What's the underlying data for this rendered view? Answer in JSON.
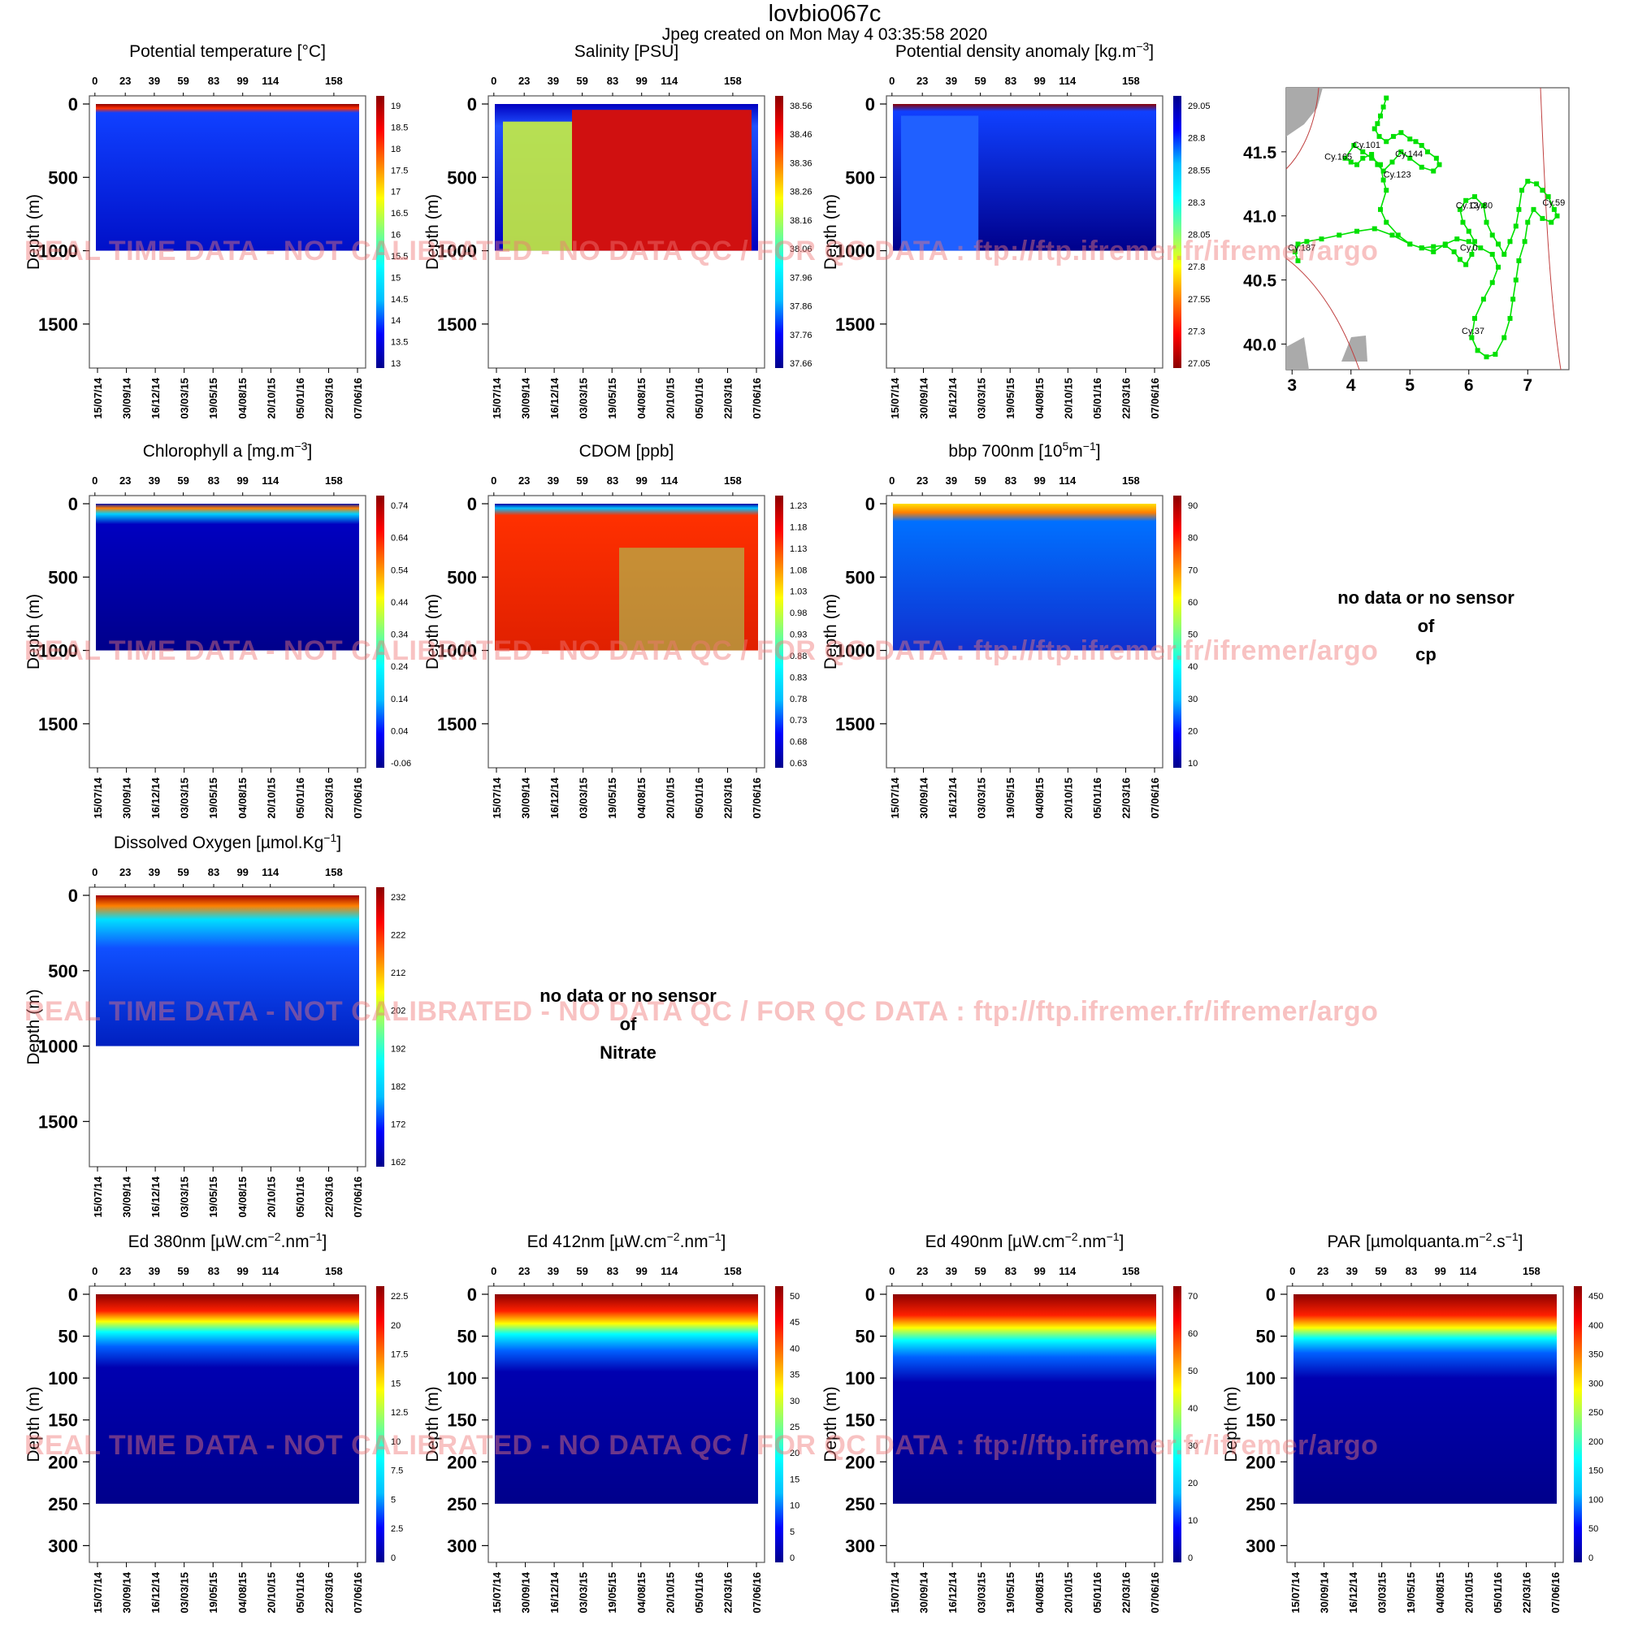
{
  "header": {
    "title": "lovbio067c",
    "subtitle": "Jpeg created on  Mon May  4 03:35:58 2020"
  },
  "watermark": "REAL TIME DATA - NOT CALIBRATED - NO DATA QC  /  FOR QC DATA : ftp://ftp.ifremer.fr/ifremer/argo",
  "nodata": {
    "cp": [
      "no data or no sensor",
      "of",
      "cp"
    ],
    "nitrate": [
      "no data or no sensor",
      "of",
      "Nitrate"
    ]
  },
  "chart_data": [
    {
      "type": "heatmap",
      "id": "temp",
      "title_parts": [
        "Potential temperature [°C]"
      ],
      "ylabel": "Depth (m)",
      "ylim": [
        1800,
        0
      ],
      "yticks": [
        0,
        500,
        1000,
        1500
      ],
      "cycle_ticks": [
        "0",
        "23",
        "39",
        "59",
        "83",
        "99",
        "114",
        "158"
      ],
      "date_ticks": [
        "15/07/14",
        "30/09/14",
        "16/12/14",
        "03/03/15",
        "19/05/15",
        "04/08/15",
        "20/10/15",
        "05/01/16",
        "22/03/16",
        "07/06/16"
      ],
      "colorbar": [
        "19",
        "18.5",
        "18",
        "17.5",
        "17",
        "16.5",
        "16",
        "15.5",
        "15",
        "14.5",
        "14",
        "13.5",
        "13"
      ],
      "palette": [
        "#00008b",
        "#0000ff",
        "#00bfff",
        "#00ffff",
        "#7fff7f",
        "#ffff00",
        "#ff7f00",
        "#ff0000",
        "#8b0000"
      ]
    },
    {
      "type": "heatmap",
      "id": "sal",
      "title_parts": [
        "Salinity [PSU]"
      ],
      "ylabel": "Depth (m)",
      "ylim": [
        1800,
        0
      ],
      "yticks": [
        0,
        500,
        1000,
        1500
      ],
      "cycle_ticks": [
        "0",
        "23",
        "39",
        "59",
        "83",
        "99",
        "114",
        "158"
      ],
      "date_ticks": [
        "15/07/14",
        "30/09/14",
        "16/12/14",
        "03/03/15",
        "19/05/15",
        "04/08/15",
        "20/10/15",
        "05/01/16",
        "22/03/16",
        "07/06/16"
      ],
      "colorbar": [
        "38.56",
        "38.46",
        "38.36",
        "38.26",
        "38.16",
        "38.06",
        "37.96",
        "37.86",
        "37.76",
        "37.66"
      ],
      "palette": [
        "#00008b",
        "#0000ff",
        "#00bfff",
        "#00ffff",
        "#7fff7f",
        "#ffff00",
        "#ff7f00",
        "#ff0000",
        "#8b0000"
      ]
    },
    {
      "type": "heatmap",
      "id": "dens",
      "title_parts": [
        "Potential density anomaly [kg.m",
        "−3",
        "]"
      ],
      "ylabel": "Depth (m)",
      "ylim": [
        1800,
        0
      ],
      "yticks": [
        0,
        500,
        1000,
        1500
      ],
      "cycle_ticks": [
        "0",
        "23",
        "39",
        "59",
        "83",
        "99",
        "114",
        "158"
      ],
      "date_ticks": [
        "15/07/14",
        "30/09/14",
        "16/12/14",
        "03/03/15",
        "19/05/15",
        "04/08/15",
        "20/10/15",
        "05/01/16",
        "22/03/16",
        "07/06/16"
      ],
      "colorbar": [
        "29.05",
        "28.8",
        "28.55",
        "28.3",
        "28.05",
        "27.8",
        "27.55",
        "27.3",
        "27.05"
      ],
      "palette": [
        "#8b0000",
        "#ff0000",
        "#ff7f00",
        "#ffff00",
        "#7fff7f",
        "#00ffff",
        "#00bfff",
        "#0000ff",
        "#00008b"
      ]
    },
    {
      "type": "heatmap",
      "id": "chla",
      "title_parts": [
        "Chlorophyll a [mg.m",
        "−3",
        "]"
      ],
      "ylabel": "Depth (m)",
      "ylim": [
        1800,
        0
      ],
      "yticks": [
        0,
        500,
        1000,
        1500
      ],
      "cycle_ticks": [
        "0",
        "23",
        "39",
        "59",
        "83",
        "99",
        "114",
        "158"
      ],
      "date_ticks": [
        "15/07/14",
        "30/09/14",
        "16/12/14",
        "03/03/15",
        "19/05/15",
        "04/08/15",
        "20/10/15",
        "05/01/16",
        "22/03/16",
        "07/06/16"
      ],
      "colorbar": [
        "0.74",
        "0.64",
        "0.54",
        "0.44",
        "0.34",
        "0.24",
        "0.14",
        "0.04",
        "-0.06"
      ],
      "palette": [
        "#00008b",
        "#0000ff",
        "#00bfff",
        "#00ffff",
        "#7fff7f",
        "#ffff00",
        "#ff7f00",
        "#ff0000",
        "#8b0000"
      ]
    },
    {
      "type": "heatmap",
      "id": "cdom",
      "title_parts": [
        "CDOM  [ppb]"
      ],
      "ylabel": "Depth (m)",
      "ylim": [
        1800,
        0
      ],
      "yticks": [
        0,
        500,
        1000,
        1500
      ],
      "cycle_ticks": [
        "0",
        "23",
        "39",
        "59",
        "83",
        "99",
        "114",
        "158"
      ],
      "date_ticks": [
        "15/07/14",
        "30/09/14",
        "16/12/14",
        "03/03/15",
        "19/05/15",
        "04/08/15",
        "20/10/15",
        "05/01/16",
        "22/03/16",
        "07/06/16"
      ],
      "colorbar": [
        "1.23",
        "1.18",
        "1.13",
        "1.08",
        "1.03",
        "0.98",
        "0.93",
        "0.88",
        "0.83",
        "0.78",
        "0.73",
        "0.68",
        "0.63"
      ],
      "palette": [
        "#00008b",
        "#0000ff",
        "#00bfff",
        "#00ffff",
        "#7fff7f",
        "#ffff00",
        "#ff7f00",
        "#ff0000",
        "#8b0000"
      ]
    },
    {
      "type": "heatmap",
      "id": "bbp",
      "title_parts": [
        "bbp 700nm [10",
        "5",
        "m",
        "−1",
        "]"
      ],
      "ylabel": "Depth (m)",
      "ylim": [
        1800,
        0
      ],
      "yticks": [
        0,
        500,
        1000,
        1500
      ],
      "cycle_ticks": [
        "0",
        "23",
        "39",
        "59",
        "83",
        "99",
        "114",
        "158"
      ],
      "date_ticks": [
        "15/07/14",
        "30/09/14",
        "16/12/14",
        "03/03/15",
        "19/05/15",
        "04/08/15",
        "20/10/15",
        "05/01/16",
        "22/03/16",
        "07/06/16"
      ],
      "colorbar": [
        "90",
        "80",
        "70",
        "60",
        "50",
        "40",
        "30",
        "20",
        "10"
      ],
      "palette": [
        "#00008b",
        "#0000ff",
        "#00bfff",
        "#00ffff",
        "#7fff7f",
        "#ffff00",
        "#ff7f00",
        "#ff0000",
        "#8b0000"
      ]
    },
    {
      "type": "heatmap",
      "id": "oxy",
      "title_parts": [
        "Dissolved Oxygen [µmol.Kg",
        "−1",
        "]"
      ],
      "ylabel": "Depth (m)",
      "ylim": [
        1800,
        0
      ],
      "yticks": [
        0,
        500,
        1000,
        1500
      ],
      "cycle_ticks": [
        "0",
        "23",
        "39",
        "59",
        "83",
        "99",
        "114",
        "158"
      ],
      "date_ticks": [
        "15/07/14",
        "30/09/14",
        "16/12/14",
        "03/03/15",
        "19/05/15",
        "04/08/15",
        "20/10/15",
        "05/01/16",
        "22/03/16",
        "07/06/16"
      ],
      "colorbar": [
        "232",
        "222",
        "212",
        "202",
        "192",
        "182",
        "172",
        "162"
      ],
      "palette": [
        "#00008b",
        "#0000ff",
        "#00bfff",
        "#00ffff",
        "#7fff7f",
        "#ffff00",
        "#ff7f00",
        "#ff0000",
        "#8b0000"
      ]
    },
    {
      "type": "heatmap",
      "id": "ed380",
      "title_parts": [
        "Ed 380nm [µW.cm",
        "−2",
        ".nm",
        "−1",
        "]"
      ],
      "ylabel": "Depth (m)",
      "ylim": [
        320,
        0
      ],
      "yticks": [
        0,
        50,
        100,
        150,
        200,
        250,
        300
      ],
      "cycle_ticks": [
        "0",
        "23",
        "39",
        "59",
        "83",
        "99",
        "114",
        "158"
      ],
      "date_ticks": [
        "15/07/14",
        "30/09/14",
        "16/12/14",
        "03/03/15",
        "19/05/15",
        "04/08/15",
        "20/10/15",
        "05/01/16",
        "22/03/16",
        "07/06/16"
      ],
      "colorbar": [
        "22.5",
        "20",
        "17.5",
        "15",
        "12.5",
        "10",
        "7.5",
        "5",
        "2.5",
        "0"
      ],
      "palette": [
        "#00008b",
        "#0000ff",
        "#00bfff",
        "#00ffff",
        "#7fff7f",
        "#ffff00",
        "#ff7f00",
        "#ff0000",
        "#8b0000"
      ]
    },
    {
      "type": "heatmap",
      "id": "ed412",
      "title_parts": [
        "Ed 412nm [µW.cm",
        "−2",
        ".nm",
        "−1",
        "]"
      ],
      "ylabel": "Depth (m)",
      "ylim": [
        320,
        0
      ],
      "yticks": [
        0,
        50,
        100,
        150,
        200,
        250,
        300
      ],
      "cycle_ticks": [
        "0",
        "23",
        "39",
        "59",
        "83",
        "99",
        "114",
        "158"
      ],
      "date_ticks": [
        "15/07/14",
        "30/09/14",
        "16/12/14",
        "03/03/15",
        "19/05/15",
        "04/08/15",
        "20/10/15",
        "05/01/16",
        "22/03/16",
        "07/06/16"
      ],
      "colorbar": [
        "50",
        "45",
        "40",
        "35",
        "30",
        "25",
        "20",
        "15",
        "10",
        "5",
        "0"
      ],
      "palette": [
        "#00008b",
        "#0000ff",
        "#00bfff",
        "#00ffff",
        "#7fff7f",
        "#ffff00",
        "#ff7f00",
        "#ff0000",
        "#8b0000"
      ]
    },
    {
      "type": "heatmap",
      "id": "ed490",
      "title_parts": [
        "Ed 490nm [µW.cm",
        "−2",
        ".nm",
        "−1",
        "]"
      ],
      "ylabel": "Depth (m)",
      "ylim": [
        320,
        0
      ],
      "yticks": [
        0,
        50,
        100,
        150,
        200,
        250,
        300
      ],
      "cycle_ticks": [
        "0",
        "23",
        "39",
        "59",
        "83",
        "99",
        "114",
        "158"
      ],
      "date_ticks": [
        "15/07/14",
        "30/09/14",
        "16/12/14",
        "03/03/15",
        "19/05/15",
        "04/08/15",
        "20/10/15",
        "05/01/16",
        "22/03/16",
        "07/06/16"
      ],
      "colorbar": [
        "70",
        "60",
        "50",
        "40",
        "30",
        "20",
        "10",
        "0"
      ],
      "palette": [
        "#00008b",
        "#0000ff",
        "#00bfff",
        "#00ffff",
        "#7fff7f",
        "#ffff00",
        "#ff7f00",
        "#ff0000",
        "#8b0000"
      ]
    },
    {
      "type": "heatmap",
      "id": "par",
      "title_parts": [
        "PAR [µmolquanta.m",
        "−2",
        ".s",
        "−1",
        "]"
      ],
      "ylabel": "Depth (m)",
      "ylim": [
        320,
        0
      ],
      "yticks": [
        0,
        50,
        100,
        150,
        200,
        250,
        300
      ],
      "cycle_ticks": [
        "0",
        "23",
        "39",
        "59",
        "83",
        "99",
        "114",
        "158"
      ],
      "date_ticks": [
        "15/07/14",
        "30/09/14",
        "16/12/14",
        "03/03/15",
        "19/05/15",
        "04/08/15",
        "20/10/15",
        "05/01/16",
        "22/03/16",
        "07/06/16"
      ],
      "colorbar": [
        "450",
        "400",
        "350",
        "300",
        "250",
        "200",
        "150",
        "100",
        "50",
        "0"
      ],
      "palette": [
        "#00008b",
        "#0000ff",
        "#00bfff",
        "#00ffff",
        "#7fff7f",
        "#ffff00",
        "#ff7f00",
        "#ff0000",
        "#8b0000"
      ]
    },
    {
      "type": "scatter",
      "id": "map",
      "xlim": [
        2.9,
        7.7
      ],
      "ylim": [
        39.8,
        42.0
      ],
      "xticks": [
        "3",
        "4",
        "5",
        "6",
        "7"
      ],
      "yticks": [
        "40.0",
        "40.5",
        "41.0",
        "41.5"
      ],
      "track_color": "#00e000",
      "track": [
        [
          4.6,
          41.92
        ],
        [
          4.55,
          41.85
        ],
        [
          4.5,
          41.78
        ],
        [
          4.45,
          41.72
        ],
        [
          4.4,
          41.68
        ],
        [
          4.48,
          41.62
        ],
        [
          4.6,
          41.58
        ],
        [
          4.72,
          41.62
        ],
        [
          4.85,
          41.65
        ],
        [
          5.0,
          41.6
        ],
        [
          5.1,
          41.58
        ],
        [
          5.2,
          41.55
        ],
        [
          5.3,
          41.5
        ],
        [
          5.45,
          41.45
        ],
        [
          5.5,
          41.4
        ],
        [
          5.4,
          41.35
        ],
        [
          5.2,
          41.38
        ],
        [
          5.0,
          41.45
        ],
        [
          4.85,
          41.5
        ],
        [
          4.7,
          41.42
        ],
        [
          4.55,
          41.35
        ],
        [
          4.45,
          41.4
        ],
        [
          4.35,
          41.48
        ],
        [
          4.2,
          41.45
        ],
        [
          4.1,
          41.4
        ],
        [
          4.0,
          41.42
        ],
        [
          3.9,
          41.45
        ],
        [
          4.05,
          41.55
        ],
        [
          4.2,
          41.5
        ],
        [
          4.35,
          41.45
        ],
        [
          4.5,
          41.4
        ],
        [
          4.55,
          41.28
        ],
        [
          4.6,
          41.2
        ],
        [
          4.5,
          41.05
        ],
        [
          4.6,
          40.95
        ],
        [
          4.8,
          40.85
        ],
        [
          5.0,
          40.78
        ],
        [
          5.2,
          40.75
        ],
        [
          5.4,
          40.76
        ],
        [
          5.6,
          40.77
        ],
        [
          5.75,
          40.72
        ],
        [
          5.85,
          40.66
        ],
        [
          5.95,
          40.62
        ],
        [
          6.05,
          40.7
        ],
        [
          6.1,
          40.8
        ],
        [
          6.0,
          40.88
        ],
        [
          5.9,
          40.95
        ],
        [
          5.85,
          41.05
        ],
        [
          5.95,
          41.12
        ],
        [
          6.1,
          41.15
        ],
        [
          6.25,
          41.08
        ],
        [
          6.3,
          40.95
        ],
        [
          6.4,
          40.85
        ],
        [
          6.5,
          40.78
        ],
        [
          6.6,
          40.7
        ],
        [
          6.7,
          40.8
        ],
        [
          6.8,
          40.92
        ],
        [
          6.85,
          41.05
        ],
        [
          6.9,
          41.2
        ],
        [
          7.0,
          41.27
        ],
        [
          7.15,
          41.25
        ],
        [
          7.25,
          41.2
        ],
        [
          7.35,
          41.15
        ],
        [
          7.45,
          41.05
        ],
        [
          7.5,
          41.0
        ],
        [
          7.4,
          40.95
        ],
        [
          7.25,
          40.98
        ],
        [
          7.1,
          41.05
        ],
        [
          7.0,
          40.95
        ],
        [
          6.95,
          40.8
        ],
        [
          6.85,
          40.65
        ],
        [
          6.8,
          40.5
        ],
        [
          6.75,
          40.35
        ],
        [
          6.7,
          40.2
        ],
        [
          6.6,
          40.05
        ],
        [
          6.45,
          39.92
        ],
        [
          6.3,
          39.9
        ],
        [
          6.15,
          39.95
        ],
        [
          6.05,
          40.05
        ],
        [
          6.1,
          40.2
        ],
        [
          6.25,
          40.35
        ],
        [
          6.4,
          40.48
        ],
        [
          6.5,
          40.6
        ],
        [
          6.4,
          40.7
        ],
        [
          6.2,
          40.75
        ],
        [
          6.0,
          40.8
        ],
        [
          5.8,
          40.82
        ],
        [
          5.6,
          40.78
        ],
        [
          5.4,
          40.72
        ],
        [
          5.2,
          40.75
        ],
        [
          5.0,
          40.78
        ],
        [
          4.7,
          40.85
        ],
        [
          4.4,
          40.9
        ],
        [
          4.1,
          40.88
        ],
        [
          3.8,
          40.85
        ],
        [
          3.5,
          40.82
        ],
        [
          3.25,
          40.8
        ],
        [
          3.1,
          40.78
        ],
        [
          3.05,
          40.72
        ],
        [
          3.1,
          40.65
        ]
      ],
      "labels": [
        {
          "text": "Cy.101",
          "lon": 4.03,
          "lat": 41.53
        },
        {
          "text": "Cy.165",
          "lon": 3.55,
          "lat": 41.44
        },
        {
          "text": "Cy.144",
          "lon": 4.75,
          "lat": 41.46
        },
        {
          "text": "Cy.123",
          "lon": 4.55,
          "lat": 41.3
        },
        {
          "text": "Cy.13",
          "lon": 5.78,
          "lat": 41.06
        },
        {
          "text": "Cy.80",
          "lon": 6.02,
          "lat": 41.06
        },
        {
          "text": "Cy.59",
          "lon": 7.25,
          "lat": 41.08
        },
        {
          "text": "Cy.0",
          "lon": 5.85,
          "lat": 40.73
        },
        {
          "text": "Cy.187",
          "lon": 2.93,
          "lat": 40.73
        },
        {
          "text": "Cy.37",
          "lon": 5.88,
          "lat": 40.08
        }
      ]
    }
  ]
}
